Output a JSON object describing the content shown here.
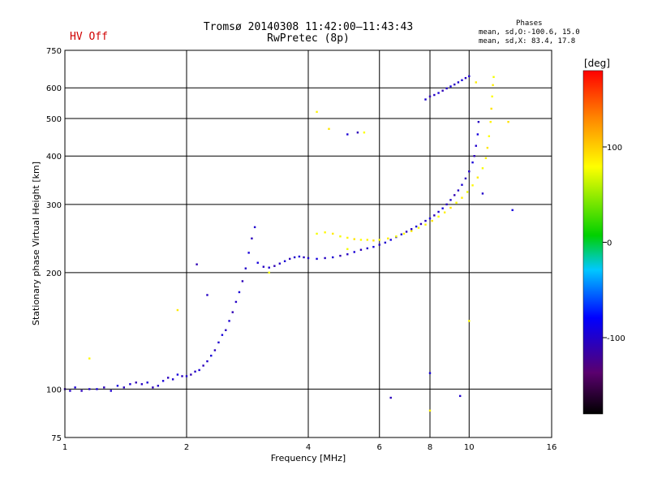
{
  "header": {
    "title_line1": "Tromsø 20140308 11:42:00–11:43:43",
    "title_line2": "RwPretec (8p)",
    "hv_status": "HV Off",
    "phases_title": "Phases",
    "phases_o": "mean, sd,O:-100.6, 15.0",
    "phases_x": "mean, sd,X:  83.4, 17.8"
  },
  "colorbar": {
    "unit_label": "[deg]",
    "tick_labels": [
      "100",
      "0",
      "-100"
    ],
    "tick_values": [
      100,
      0,
      -100
    ],
    "range": [
      -180,
      180
    ]
  },
  "chart_data": {
    "type": "scatter",
    "xlabel": "Frequency [MHz]",
    "ylabel": "Stationary phase Virtual Height [km]",
    "x_scale": "log",
    "y_scale": "log",
    "xlim": [
      1,
      16
    ],
    "ylim": [
      75,
      750
    ],
    "x_ticks": [
      1,
      2,
      4,
      6,
      8,
      10,
      16
    ],
    "x_tick_labels": [
      "1",
      "2",
      "4",
      "6",
      "8",
      "10",
      "16"
    ],
    "y_ticks": [
      75,
      100,
      200,
      300,
      400,
      500,
      600,
      750
    ],
    "y_tick_labels": [
      "75",
      "100",
      "200",
      "300",
      "400",
      "500",
      "600",
      "750"
    ],
    "grid": true,
    "series": [
      {
        "mode": "O",
        "phase_mean": -100.6,
        "points": [
          [
            1.0,
            100
          ],
          [
            1.03,
            99
          ],
          [
            1.06,
            101
          ],
          [
            1.1,
            99
          ],
          [
            1.15,
            100
          ],
          [
            1.2,
            100
          ],
          [
            1.25,
            101
          ],
          [
            1.3,
            99
          ],
          [
            1.35,
            102
          ],
          [
            1.4,
            101
          ],
          [
            1.45,
            103
          ],
          [
            1.5,
            104
          ],
          [
            1.55,
            103
          ],
          [
            1.6,
            104
          ],
          [
            1.65,
            101
          ],
          [
            1.7,
            102
          ],
          [
            1.75,
            105
          ],
          [
            1.8,
            107
          ],
          [
            1.85,
            106
          ],
          [
            1.9,
            109
          ],
          [
            1.95,
            108
          ],
          [
            2.0,
            108
          ],
          [
            2.05,
            109
          ],
          [
            2.1,
            111
          ],
          [
            2.15,
            112
          ],
          [
            2.2,
            115
          ],
          [
            2.25,
            118
          ],
          [
            2.3,
            122
          ],
          [
            2.35,
            126
          ],
          [
            2.4,
            132
          ],
          [
            2.45,
            138
          ],
          [
            2.5,
            142
          ],
          [
            2.55,
            150
          ],
          [
            2.6,
            158
          ],
          [
            2.65,
            168
          ],
          [
            2.7,
            178
          ],
          [
            2.75,
            190
          ],
          [
            2.8,
            205
          ],
          [
            2.85,
            225
          ],
          [
            2.9,
            245
          ],
          [
            2.95,
            262
          ],
          [
            3.0,
            212
          ],
          [
            3.1,
            207
          ],
          [
            3.2,
            206
          ],
          [
            3.3,
            208
          ],
          [
            3.4,
            211
          ],
          [
            3.5,
            214
          ],
          [
            3.6,
            217
          ],
          [
            3.7,
            219
          ],
          [
            3.8,
            220
          ],
          [
            3.9,
            219
          ],
          [
            4.0,
            218
          ],
          [
            4.2,
            217
          ],
          [
            4.4,
            218
          ],
          [
            4.6,
            219
          ],
          [
            4.8,
            221
          ],
          [
            5.0,
            223
          ],
          [
            5.2,
            226
          ],
          [
            5.4,
            229
          ],
          [
            5.6,
            231
          ],
          [
            5.8,
            233
          ],
          [
            6.0,
            236
          ],
          [
            6.2,
            239
          ],
          [
            6.4,
            243
          ],
          [
            6.6,
            247
          ],
          [
            6.8,
            251
          ],
          [
            7.0,
            255
          ],
          [
            7.2,
            259
          ],
          [
            7.4,
            263
          ],
          [
            7.6,
            267
          ],
          [
            7.8,
            272
          ],
          [
            8.0,
            276
          ],
          [
            8.2,
            281
          ],
          [
            8.4,
            287
          ],
          [
            8.6,
            293
          ],
          [
            8.8,
            300
          ],
          [
            9.0,
            308
          ],
          [
            9.2,
            317
          ],
          [
            9.4,
            326
          ],
          [
            9.6,
            337
          ],
          [
            9.8,
            350
          ],
          [
            10.0,
            365
          ],
          [
            10.2,
            385
          ],
          [
            10.3,
            400
          ],
          [
            10.4,
            425
          ],
          [
            10.5,
            455
          ],
          [
            10.55,
            490
          ],
          [
            7.8,
            560
          ],
          [
            8.0,
            570
          ],
          [
            8.2,
            575
          ],
          [
            8.4,
            582
          ],
          [
            8.6,
            590
          ],
          [
            8.8,
            598
          ],
          [
            9.0,
            605
          ],
          [
            9.2,
            612
          ],
          [
            9.4,
            620
          ],
          [
            9.6,
            628
          ],
          [
            9.8,
            636
          ],
          [
            10.0,
            643
          ],
          [
            2.12,
            210
          ],
          [
            2.25,
            175
          ],
          [
            5.0,
            455
          ],
          [
            5.3,
            460
          ],
          [
            10.8,
            320
          ],
          [
            8.0,
            110
          ],
          [
            6.4,
            95
          ],
          [
            9.5,
            96
          ],
          [
            12.8,
            290
          ]
        ]
      },
      {
        "mode": "X",
        "phase_mean": 83.4,
        "points": [
          [
            4.2,
            252
          ],
          [
            4.4,
            254
          ],
          [
            4.6,
            252
          ],
          [
            4.8,
            248
          ],
          [
            5.0,
            246
          ],
          [
            5.2,
            244
          ],
          [
            5.4,
            243
          ],
          [
            5.6,
            243
          ],
          [
            5.8,
            242
          ],
          [
            6.0,
            243
          ],
          [
            6.3,
            245
          ],
          [
            6.6,
            248
          ],
          [
            6.9,
            252
          ],
          [
            7.2,
            256
          ],
          [
            7.5,
            261
          ],
          [
            7.8,
            266
          ],
          [
            8.1,
            272
          ],
          [
            8.4,
            279
          ],
          [
            8.7,
            286
          ],
          [
            9.0,
            294
          ],
          [
            9.3,
            303
          ],
          [
            9.6,
            312
          ],
          [
            9.9,
            323
          ],
          [
            10.2,
            336
          ],
          [
            10.5,
            352
          ],
          [
            10.8,
            372
          ],
          [
            11.0,
            395
          ],
          [
            11.1,
            420
          ],
          [
            11.2,
            450
          ],
          [
            11.3,
            490
          ],
          [
            11.35,
            530
          ],
          [
            11.4,
            570
          ],
          [
            11.45,
            610
          ],
          [
            11.5,
            640
          ],
          [
            1.15,
            120
          ],
          [
            1.9,
            160
          ],
          [
            3.2,
            200
          ],
          [
            4.2,
            520
          ],
          [
            4.5,
            470
          ],
          [
            5.5,
            460
          ],
          [
            8.0,
            88
          ],
          [
            12.5,
            490
          ],
          [
            10.0,
            150
          ],
          [
            10.4,
            620
          ],
          [
            5.0,
            230
          ]
        ]
      }
    ]
  }
}
